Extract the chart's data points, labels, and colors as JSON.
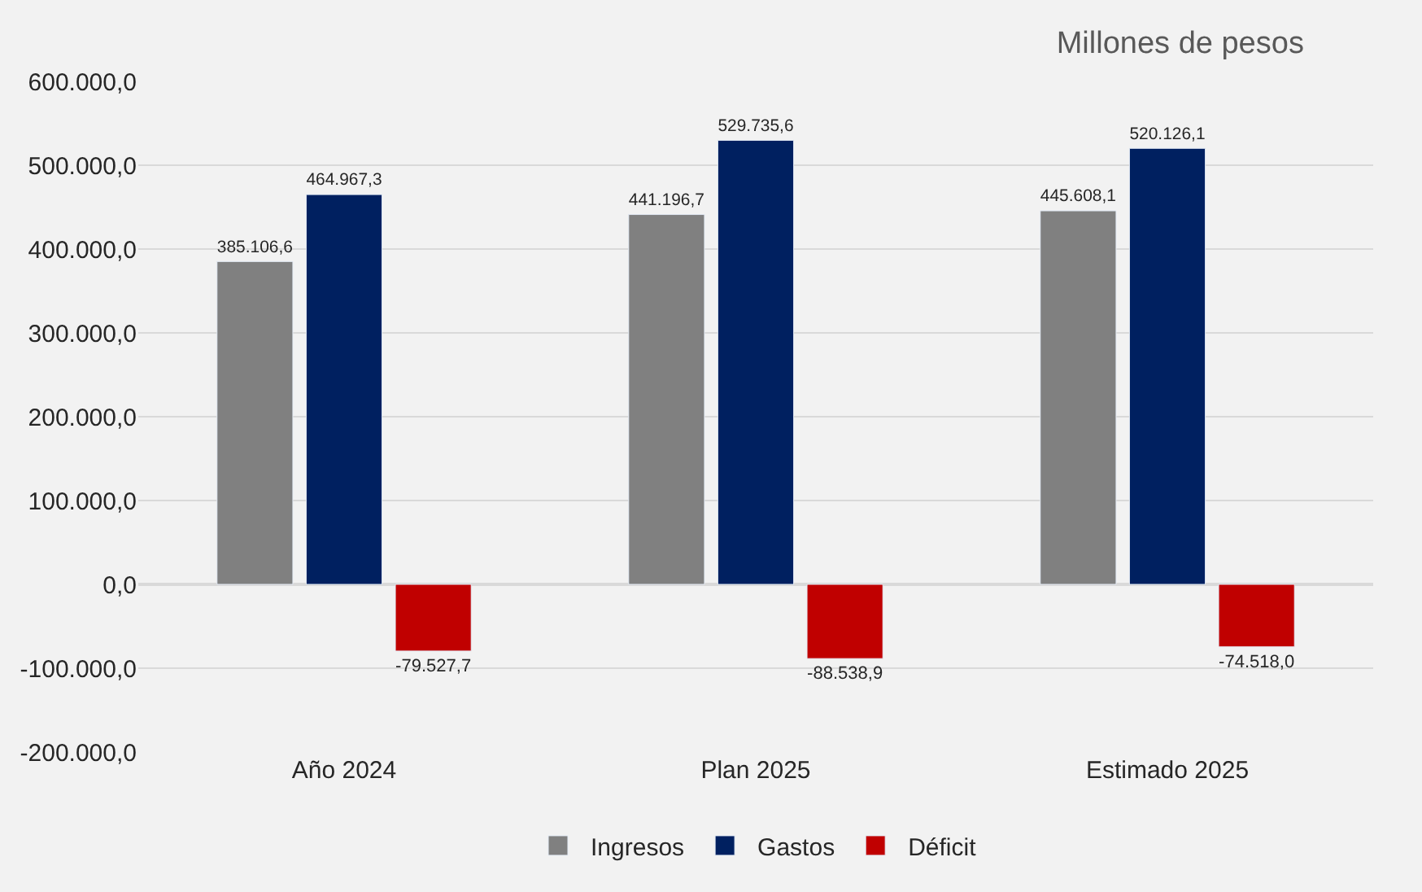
{
  "chart_data": {
    "type": "bar",
    "title": "Millones de pesos",
    "categories": [
      "Año 2024",
      "Plan 2025",
      "Estimado 2025"
    ],
    "series": [
      {
        "name": "Ingresos",
        "color": "#808080",
        "values": [
          385106.6,
          441196.7,
          445608.1
        ],
        "value_labels": [
          "385.106,6",
          "441.196,7",
          "445.608,1"
        ]
      },
      {
        "name": "Gastos",
        "color": "#002060",
        "values": [
          464967.3,
          529735.6,
          520126.1
        ],
        "value_labels": [
          "464.967,3",
          "529.735,6",
          "520.126,1"
        ]
      },
      {
        "name": "Déficit",
        "color": "#c00000",
        "values": [
          -79527.7,
          -88538.9,
          -74518.0
        ],
        "value_labels": [
          "-79.527,7",
          "-88.538,9",
          "-74.518,0"
        ]
      }
    ],
    "ylim": [
      -200000,
      600000
    ],
    "yticks": [
      {
        "value": -200000,
        "label": "-200.000,0"
      },
      {
        "value": -100000,
        "label": "-100.000,0"
      },
      {
        "value": 0,
        "label": "0,0"
      },
      {
        "value": 100000,
        "label": "100.000,0"
      },
      {
        "value": 200000,
        "label": "200.000,0"
      },
      {
        "value": 300000,
        "label": "300.000,0"
      },
      {
        "value": 400000,
        "label": "400.000,0"
      },
      {
        "value": 500000,
        "label": "500.000,0"
      },
      {
        "value": 600000,
        "label": "600.000,0"
      }
    ],
    "grid": "y",
    "legend": "bottom"
  }
}
